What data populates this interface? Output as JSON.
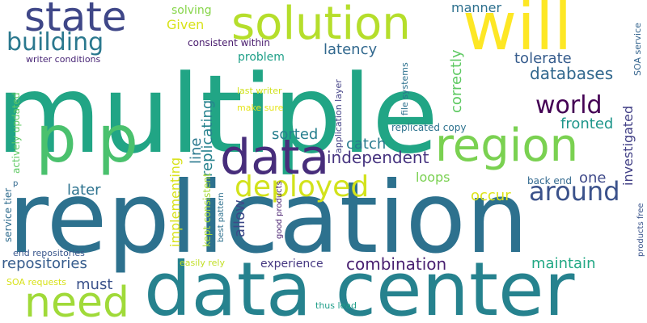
{
  "words": [
    {
      "id": "multiple",
      "text": "multiple",
      "color": "#21a585"
    },
    {
      "id": "replication",
      "text": "replication",
      "color": "#2d718e"
    },
    {
      "id": "data-center",
      "text": "data center",
      "color": "#26828e"
    },
    {
      "id": "solution",
      "text": "solution",
      "color": "#b5de2b"
    },
    {
      "id": "state",
      "text": "state",
      "color": "#3f4788"
    },
    {
      "id": "will",
      "text": "will",
      "color": "#fde725"
    },
    {
      "id": "p-p",
      "text": "p p",
      "color": "#4ac16d"
    },
    {
      "id": "region",
      "text": "region",
      "color": "#7ad151"
    },
    {
      "id": "data",
      "text": "data",
      "color": "#472d7b"
    },
    {
      "id": "deployed",
      "text": "deployed",
      "color": "#d2e21b"
    },
    {
      "id": "building",
      "text": "building",
      "color": "#2a788e"
    },
    {
      "id": "need",
      "text": "need",
      "color": "#a0da39"
    },
    {
      "id": "around",
      "text": "around",
      "color": "#3b528b"
    },
    {
      "id": "world",
      "text": "world",
      "color": "#440154"
    },
    {
      "id": "combination",
      "text": "combination",
      "color": "#481f70"
    },
    {
      "id": "databases",
      "text": "databases",
      "color": "#31688e"
    },
    {
      "id": "independent",
      "text": "independent",
      "color": "#46337f"
    },
    {
      "id": "repositories",
      "text": "repositories",
      "color": "#365c8d"
    },
    {
      "id": "maintain",
      "text": "maintain",
      "color": "#22a884"
    },
    {
      "id": "correctly",
      "text": "correctly",
      "color": "#5ec962"
    },
    {
      "id": "tolerate",
      "text": "tolerate",
      "color": "#365c8d"
    },
    {
      "id": "fronted",
      "text": "fronted",
      "color": "#1f968b"
    },
    {
      "id": "replicating",
      "text": "replicating",
      "color": "#26828e"
    },
    {
      "id": "implementing",
      "text": "implementing",
      "color": "#d8e219"
    },
    {
      "id": "line",
      "text": "line",
      "color": "#2a788e"
    },
    {
      "id": "allow",
      "text": "allow",
      "color": "#3e4a89"
    },
    {
      "id": "sorted",
      "text": "sorted",
      "color": "#277f8e"
    },
    {
      "id": "catch",
      "text": "catch",
      "color": "#297b8e"
    },
    {
      "id": "latency",
      "text": "latency",
      "color": "#31688e"
    },
    {
      "id": "later",
      "text": "later",
      "color": "#2c728e"
    },
    {
      "id": "must",
      "text": "must",
      "color": "#3b528b"
    },
    {
      "id": "occur",
      "text": "occur",
      "color": "#dde318"
    },
    {
      "id": "one",
      "text": "one",
      "color": "#3e4989"
    },
    {
      "id": "loops",
      "text": "loops",
      "color": "#7ad151"
    },
    {
      "id": "investigated",
      "text": "investigated",
      "color": "#424086"
    },
    {
      "id": "experience",
      "text": "experience",
      "color": "#453781"
    },
    {
      "id": "manner",
      "text": "manner",
      "color": "#2d708e"
    },
    {
      "id": "problem",
      "text": "problem",
      "color": "#1fa088"
    },
    {
      "id": "given",
      "text": "Given",
      "color": "#d8e219"
    },
    {
      "id": "solving",
      "text": "solving",
      "color": "#86d549"
    },
    {
      "id": "consistent-within",
      "text": "consistent within",
      "color": "#481b6d"
    },
    {
      "id": "writer-conditions",
      "text": "writer conditions",
      "color": "#482576"
    },
    {
      "id": "application-layer",
      "text": "application layer",
      "color": "#424086"
    },
    {
      "id": "file-systems",
      "text": "file systems",
      "color": "#2d718e"
    },
    {
      "id": "replicated-copy",
      "text": "replicated copy",
      "color": "#2c728e"
    },
    {
      "id": "last-writer",
      "text": "last writer",
      "color": "#d0e11c"
    },
    {
      "id": "make-sure",
      "text": "make sure",
      "color": "#e5e419"
    },
    {
      "id": "soa-service",
      "text": "SOA service",
      "color": "#33638d"
    },
    {
      "id": "actively-updated",
      "text": "actively updated",
      "color": "#5ec962"
    },
    {
      "id": "kept-consistent",
      "text": "kept consistent",
      "color": "#a8db34"
    },
    {
      "id": "service-tier",
      "text": "service tier",
      "color": "#2f6c8e"
    },
    {
      "id": "end-repositories",
      "text": "end repositories",
      "color": "#39568c"
    },
    {
      "id": "best-pattern",
      "text": "best pattern",
      "color": "#2d708e"
    },
    {
      "id": "good-products",
      "text": "good products",
      "color": "#481f70"
    },
    {
      "id": "back-end",
      "text": "back end",
      "color": "#31688e"
    },
    {
      "id": "products-free",
      "text": "products free",
      "color": "#3a548c"
    },
    {
      "id": "easily-rely",
      "text": "easily rely",
      "color": "#c2df23"
    },
    {
      "id": "soa-requests",
      "text": "SOA requests",
      "color": "#d8e219"
    },
    {
      "id": "thus-lead",
      "text": "thus lead",
      "color": "#1f9e89"
    },
    {
      "id": "p-small",
      "text": "p",
      "color": "#31688e"
    }
  ]
}
